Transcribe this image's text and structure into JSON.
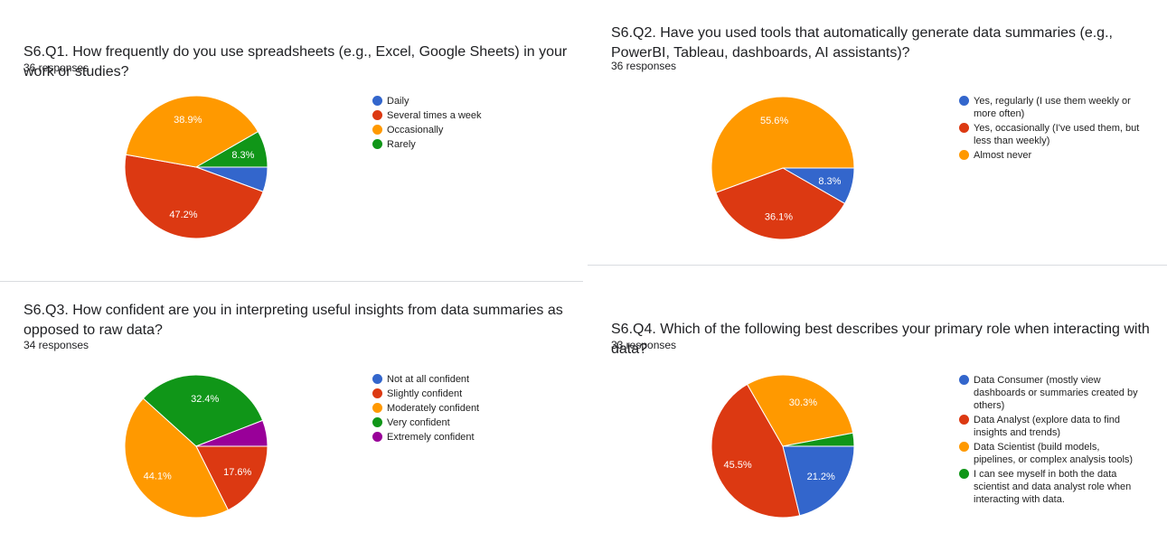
{
  "colors": {
    "blue": "#3366cc",
    "red": "#dc3912",
    "orange": "#ff9900",
    "green": "#109618",
    "purple": "#990099",
    "divider": "#dadce0"
  },
  "chart_data": [
    {
      "type": "pie",
      "title": "S6.Q1. How frequently do you use spreadsheets (e.g., Excel, Google Sheets) in your work or studies?",
      "subtitle": "36 responses",
      "legend_position": "right",
      "start_angle_deg": 90,
      "categories": [
        "Daily",
        "Several times a week",
        "Occasionally",
        "Rarely"
      ],
      "values": [
        5.6,
        47.2,
        38.9,
        8.3
      ],
      "data_labels": [
        "",
        "47.2%",
        "38.9%",
        "8.3%"
      ],
      "colors": [
        "#3366cc",
        "#dc3912",
        "#ff9900",
        "#109618"
      ]
    },
    {
      "type": "pie",
      "title": "S6.Q2. Have you used tools that automatically generate data summaries (e.g., PowerBI, Tableau, dashboards, AI assistants)?",
      "subtitle": "36 responses",
      "legend_position": "right",
      "start_angle_deg": 90,
      "categories": [
        "Yes, regularly (I use them weekly or more often)",
        "Yes, occasionally (I've used them, but less than weekly)",
        "Almost never"
      ],
      "values": [
        8.3,
        36.1,
        55.6
      ],
      "data_labels": [
        "8.3%",
        "36.1%",
        "55.6%"
      ],
      "colors": [
        "#3366cc",
        "#dc3912",
        "#ff9900"
      ]
    },
    {
      "type": "pie",
      "title": "S6.Q3. How confident are you in interpreting useful insights from data summaries as opposed to raw data?",
      "subtitle": "34 responses",
      "legend_position": "right",
      "start_angle_deg": 90,
      "categories": [
        "Not at all confident",
        "Slightly confident",
        "Moderately confident",
        "Very confident",
        "Extremely confident"
      ],
      "values": [
        0,
        17.6,
        44.1,
        32.4,
        5.9
      ],
      "data_labels": [
        "",
        "17.6%",
        "44.1%",
        "32.4%",
        ""
      ],
      "colors": [
        "#3366cc",
        "#dc3912",
        "#ff9900",
        "#109618",
        "#990099"
      ]
    },
    {
      "type": "pie",
      "title": "S6.Q4. Which of the following best describes your primary role when interacting with data?",
      "subtitle": "33 responses",
      "legend_position": "right",
      "start_angle_deg": 90,
      "categories": [
        "Data Consumer (mostly view dashboards or summaries created by others)",
        "Data Analyst (explore data to find insights and trends)",
        "Data Scientist (build models, pipelines, or complex analysis tools)",
        "I can see myself in both the data scientist and data analyst role when interacting with data."
      ],
      "values": [
        21.2,
        45.5,
        30.3,
        3.0
      ],
      "data_labels": [
        "21.2%",
        "45.5%",
        "30.3%",
        ""
      ],
      "colors": [
        "#3366cc",
        "#dc3912",
        "#ff9900",
        "#109618"
      ]
    }
  ]
}
